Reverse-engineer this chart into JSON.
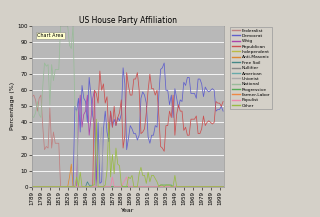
{
  "title": "US House Party Affiliation",
  "xlabel": "Year",
  "ylabel": "Percentage (%)",
  "chart_area_label": "Chart Area",
  "fig_bg_color": "#D4D0C8",
  "plot_bg_color": "#B8B8B8",
  "ylim": [
    0,
    100
  ],
  "legend_entries": [
    "Federalist",
    "Democrat",
    "Whig",
    "Republican",
    "Independent",
    "Anti-Masonic",
    "Free Soil",
    "Nullifier",
    "American",
    "Unionist",
    "National",
    "Progressive",
    "Farmer-Labor",
    "Populist",
    "Other"
  ],
  "legend_colors": [
    "#C08080",
    "#6060CC",
    "#AA44AA",
    "#CC5050",
    "#BBBB44",
    "#DD8833",
    "#448888",
    "#888888",
    "#66AAAA",
    "#AAAAAA",
    "#99BB99",
    "#55AA55",
    "#EE8844",
    "#EE88AA",
    "#99BB44"
  ],
  "years": [
    1789,
    1791,
    1793,
    1795,
    1797,
    1799,
    1801,
    1803,
    1805,
    1807,
    1809,
    1811,
    1813,
    1815,
    1817,
    1819,
    1821,
    1823,
    1825,
    1827,
    1829,
    1831,
    1833,
    1835,
    1837,
    1839,
    1841,
    1843,
    1845,
    1847,
    1849,
    1851,
    1853,
    1855,
    1857,
    1859,
    1861,
    1863,
    1865,
    1867,
    1869,
    1871,
    1873,
    1875,
    1877,
    1879,
    1881,
    1883,
    1885,
    1887,
    1889,
    1891,
    1893,
    1895,
    1897,
    1899,
    1901,
    1903,
    1905,
    1907,
    1909,
    1911,
    1913,
    1915,
    1917,
    1919,
    1921,
    1923,
    1925,
    1927,
    1929,
    1931,
    1933,
    1935,
    1937,
    1939,
    1941,
    1943,
    1945,
    1947,
    1949,
    1951,
    1953,
    1955,
    1957,
    1959,
    1961,
    1963,
    1965,
    1967,
    1969,
    1971,
    1973,
    1975,
    1977,
    1979,
    1981,
    1983,
    1985,
    1987,
    1989,
    1991,
    1993,
    1995,
    1997,
    1999,
    2001,
    2003
  ],
  "federalist": [
    56,
    57,
    54,
    47,
    55,
    57,
    38,
    23,
    25,
    24,
    49,
    24,
    34,
    27,
    27,
    27,
    0,
    0,
    0,
    0,
    0,
    0,
    0,
    0,
    0,
    0,
    0,
    0,
    0,
    0,
    0,
    0,
    0,
    0,
    0,
    0,
    0,
    0,
    0,
    0,
    0,
    0,
    0,
    0,
    0,
    0,
    0,
    0,
    0,
    0,
    0,
    0,
    0,
    0,
    0,
    0,
    0,
    0,
    0,
    0,
    0,
    0,
    0,
    0,
    0,
    0,
    0,
    0,
    0,
    0,
    0,
    0,
    0,
    0,
    0,
    0,
    0,
    0,
    0,
    0,
    0,
    0,
    0,
    0,
    0,
    0,
    0,
    0,
    0,
    0,
    0,
    0,
    0,
    0,
    0,
    0,
    0,
    0,
    0,
    0,
    0,
    0,
    0,
    0,
    0,
    0,
    0,
    0
  ],
  "democrat": [
    0,
    0,
    0,
    0,
    0,
    0,
    0,
    0,
    0,
    0,
    0,
    0,
    0,
    0,
    0,
    0,
    0,
    0,
    0,
    0,
    0,
    0,
    0,
    0,
    50,
    47,
    55,
    34,
    63,
    55,
    53,
    40,
    68,
    57,
    44,
    39,
    0,
    40,
    2,
    3,
    36,
    47,
    34,
    28,
    47,
    37,
    42,
    38,
    43,
    41,
    45,
    74,
    64,
    23,
    30,
    38,
    36,
    33,
    33,
    29,
    32,
    55,
    59,
    57,
    52,
    31,
    27,
    32,
    32,
    38,
    37,
    57,
    73,
    74,
    77,
    60,
    60,
    51,
    57,
    43,
    61,
    55,
    49,
    54,
    53,
    65,
    63,
    68,
    68,
    58,
    58,
    58,
    55,
    67,
    67,
    64,
    56,
    62,
    60,
    59,
    60,
    61,
    60,
    47,
    48,
    48,
    50,
    47
  ],
  "whig": [
    0,
    0,
    0,
    0,
    0,
    0,
    0,
    0,
    0,
    0,
    0,
    0,
    0,
    0,
    0,
    0,
    0,
    0,
    0,
    0,
    0,
    0,
    0,
    0,
    0,
    0,
    45,
    57,
    37,
    45,
    47,
    57,
    32,
    42,
    55,
    60,
    0,
    0,
    0,
    0,
    0,
    0,
    0,
    0,
    0,
    0,
    0,
    0,
    0,
    0,
    0,
    0,
    0,
    0,
    0,
    0,
    0,
    0,
    0,
    0,
    0,
    0,
    0,
    0,
    0,
    0,
    0,
    0,
    0,
    0,
    0,
    0,
    0,
    0,
    0,
    0,
    0,
    0,
    0,
    0,
    0,
    0,
    0,
    0,
    0,
    0,
    0,
    0,
    0,
    0,
    0,
    0,
    0,
    0,
    0,
    0,
    0,
    0,
    0,
    0,
    0,
    0,
    0,
    0,
    0,
    0,
    0,
    0
  ],
  "republican": [
    0,
    0,
    0,
    0,
    0,
    0,
    0,
    0,
    0,
    0,
    0,
    0,
    0,
    0,
    0,
    0,
    0,
    0,
    0,
    0,
    0,
    0,
    0,
    0,
    0,
    0,
    0,
    0,
    0,
    0,
    0,
    0,
    0,
    0,
    0,
    60,
    58,
    52,
    72,
    60,
    64,
    52,
    56,
    32,
    47,
    37,
    50,
    38,
    43,
    46,
    54,
    24,
    32,
    71,
    63,
    57,
    57,
    67,
    67,
    71,
    60,
    33,
    34,
    36,
    46,
    60,
    70,
    61,
    61,
    57,
    60,
    44,
    25,
    24,
    22,
    38,
    38,
    47,
    43,
    57,
    32,
    45,
    51,
    47,
    47,
    35,
    37,
    32,
    32,
    42,
    42,
    42,
    44,
    33,
    33,
    36,
    44,
    38,
    40,
    41,
    40,
    39,
    40,
    53,
    52,
    52,
    50,
    53
  ],
  "independent": [
    0,
    0,
    0,
    0,
    0,
    0,
    0,
    0,
    0,
    0,
    0,
    0,
    0,
    0,
    0,
    0,
    0,
    0,
    0,
    0,
    0,
    0,
    0,
    0,
    0,
    0,
    0,
    0,
    0,
    0,
    0,
    0,
    0,
    0,
    0,
    0,
    0,
    0,
    0,
    0,
    0,
    0,
    0,
    0,
    0,
    0,
    0,
    0,
    0,
    0,
    0,
    0,
    0,
    0,
    0,
    0,
    0,
    0,
    0,
    0,
    0,
    0,
    0,
    0,
    0,
    0,
    0,
    0,
    0,
    0,
    0,
    0,
    0,
    0,
    0,
    0,
    0,
    0,
    0,
    0,
    0,
    0,
    0,
    0,
    0,
    0,
    0,
    0,
    0,
    0,
    0,
    0,
    0,
    0,
    0,
    0,
    0,
    0,
    0,
    0,
    0,
    0,
    0,
    0,
    0,
    0,
    0,
    0
  ],
  "anti_masonic": [
    0,
    0,
    0,
    0,
    0,
    0,
    0,
    0,
    0,
    0,
    0,
    0,
    0,
    0,
    0,
    0,
    0,
    0,
    0,
    0,
    0,
    6,
    14,
    0,
    0,
    0,
    0,
    0,
    0,
    0,
    0,
    0,
    0,
    0,
    0,
    0,
    0,
    0,
    0,
    0,
    0,
    0,
    0,
    0,
    0,
    0,
    0,
    0,
    0,
    0,
    0,
    0,
    0,
    0,
    0,
    0,
    0,
    0,
    0,
    0,
    0,
    0,
    0,
    0,
    0,
    0,
    0,
    0,
    0,
    0,
    0,
    0,
    0,
    0,
    0,
    0,
    0,
    0,
    0,
    0,
    0,
    0,
    0,
    0,
    0,
    0,
    0,
    0,
    0,
    0,
    0,
    0,
    0,
    0,
    0,
    0,
    0,
    0,
    0,
    0,
    0,
    0,
    0,
    0,
    0,
    0,
    0,
    0
  ],
  "free_soil": [
    0,
    0,
    0,
    0,
    0,
    0,
    0,
    0,
    0,
    0,
    0,
    0,
    0,
    0,
    0,
    0,
    0,
    0,
    0,
    0,
    0,
    0,
    0,
    0,
    0,
    0,
    0,
    0,
    0,
    0,
    0,
    3,
    1,
    0,
    0,
    0,
    0,
    0,
    0,
    0,
    0,
    0,
    0,
    0,
    0,
    0,
    0,
    0,
    0,
    0,
    0,
    0,
    0,
    0,
    0,
    0,
    0,
    0,
    0,
    0,
    0,
    0,
    0,
    0,
    0,
    0,
    0,
    0,
    0,
    0,
    0,
    0,
    0,
    0,
    0,
    0,
    0,
    0,
    0,
    0,
    0,
    0,
    0,
    0,
    0,
    0,
    0,
    0,
    0,
    0,
    0,
    0,
    0,
    0,
    0,
    0,
    0,
    0,
    0,
    0,
    0,
    0,
    0,
    0,
    0,
    0,
    0,
    0
  ],
  "nullifier": [
    0,
    0,
    0,
    0,
    0,
    0,
    0,
    0,
    0,
    0,
    0,
    0,
    0,
    0,
    0,
    0,
    0,
    0,
    0,
    0,
    0,
    0,
    0,
    0,
    0,
    0,
    0,
    0,
    0,
    0,
    0,
    0,
    0,
    0,
    0,
    0,
    0,
    0,
    0,
    0,
    0,
    0,
    0,
    0,
    0,
    0,
    0,
    0,
    0,
    0,
    0,
    0,
    0,
    0,
    0,
    0,
    0,
    0,
    0,
    0,
    0,
    0,
    0,
    0,
    0,
    0,
    0,
    0,
    0,
    0,
    0,
    0,
    0,
    0,
    0,
    0,
    0,
    0,
    0,
    0,
    0,
    0,
    0,
    0,
    0,
    0,
    0,
    0,
    0,
    0,
    0,
    0,
    0,
    0,
    0,
    0,
    0,
    0,
    0,
    0,
    0,
    0,
    0,
    0,
    0,
    0,
    0,
    0
  ],
  "american": [
    0,
    0,
    0,
    0,
    0,
    0,
    0,
    0,
    0,
    0,
    0,
    0,
    0,
    0,
    0,
    0,
    0,
    0,
    0,
    0,
    0,
    0,
    0,
    0,
    0,
    0,
    0,
    0,
    0,
    0,
    0,
    0,
    0,
    1,
    0,
    0,
    0,
    0,
    0,
    0,
    0,
    0,
    0,
    0,
    0,
    0,
    0,
    0,
    0,
    0,
    0,
    0,
    0,
    0,
    0,
    0,
    0,
    0,
    0,
    0,
    0,
    0,
    0,
    0,
    0,
    0,
    0,
    0,
    0,
    0,
    0,
    0,
    0,
    0,
    0,
    0,
    0,
    0,
    0,
    0,
    0,
    0,
    0,
    0,
    0,
    0,
    0,
    0,
    0,
    0,
    0,
    0,
    0,
    0,
    0,
    0,
    0,
    0,
    0,
    0,
    0,
    0,
    0,
    0,
    0,
    0,
    0,
    0
  ],
  "unionist": [
    0,
    0,
    0,
    0,
    0,
    0,
    0,
    0,
    0,
    0,
    0,
    0,
    0,
    0,
    0,
    0,
    0,
    0,
    0,
    0,
    0,
    0,
    0,
    0,
    0,
    0,
    0,
    0,
    0,
    0,
    0,
    0,
    0,
    0,
    0,
    0,
    0,
    8,
    26,
    37,
    0,
    0,
    0,
    0,
    0,
    0,
    0,
    0,
    0,
    0,
    0,
    0,
    0,
    0,
    0,
    0,
    0,
    0,
    0,
    0,
    0,
    0,
    0,
    0,
    0,
    0,
    0,
    0,
    0,
    0,
    0,
    0,
    0,
    0,
    0,
    0,
    0,
    0,
    0,
    0,
    0,
    0,
    0,
    0,
    0,
    0,
    0,
    0,
    0,
    0,
    0,
    0,
    0,
    0,
    0,
    0,
    0,
    0,
    0,
    0,
    0,
    0,
    0,
    0,
    0,
    0,
    0,
    0
  ],
  "national": [
    44,
    43,
    46,
    53,
    45,
    43,
    62,
    77,
    75,
    76,
    51,
    76,
    66,
    73,
    73,
    73,
    100,
    100,
    100,
    100,
    100,
    88,
    86,
    100,
    50,
    47,
    0,
    0,
    0,
    0,
    0,
    0,
    0,
    0,
    0,
    0,
    0,
    0,
    0,
    0,
    0,
    0,
    0,
    0,
    0,
    0,
    0,
    0,
    0,
    0,
    0,
    0,
    0,
    0,
    0,
    0,
    0,
    0,
    0,
    0,
    0,
    0,
    0,
    0,
    0,
    0,
    0,
    0,
    0,
    0,
    0,
    0,
    0,
    0,
    0,
    0,
    0,
    0,
    0,
    0,
    0,
    0,
    0,
    0,
    0,
    0,
    0,
    0,
    0,
    0,
    0,
    0,
    0,
    0,
    0,
    0,
    0,
    0,
    0,
    0,
    0,
    0,
    0,
    0,
    0,
    0,
    0,
    0
  ],
  "progressive": [
    0,
    0,
    0,
    0,
    0,
    0,
    0,
    0,
    0,
    0,
    0,
    0,
    0,
    0,
    0,
    0,
    0,
    0,
    0,
    0,
    0,
    0,
    0,
    0,
    0,
    0,
    0,
    0,
    0,
    0,
    0,
    0,
    0,
    0,
    0,
    0,
    0,
    0,
    0,
    0,
    0,
    0,
    0,
    0,
    0,
    0,
    0,
    0,
    0,
    0,
    0,
    0,
    0,
    0,
    0,
    0,
    0,
    0,
    0,
    0,
    0,
    0,
    0,
    0,
    0,
    0,
    0,
    0,
    0,
    0,
    0,
    0,
    1,
    1,
    1,
    1,
    1,
    1,
    1,
    0,
    0,
    0,
    0,
    0,
    0,
    0,
    0,
    0,
    0,
    0,
    0,
    0,
    0,
    0,
    0,
    0,
    0,
    0,
    0,
    0,
    0,
    0,
    0,
    0,
    0,
    0,
    0,
    0
  ],
  "farmer_labor": [
    0,
    0,
    0,
    0,
    0,
    0,
    0,
    0,
    0,
    0,
    0,
    0,
    0,
    0,
    0,
    0,
    0,
    0,
    0,
    0,
    0,
    0,
    0,
    0,
    0,
    0,
    0,
    0,
    0,
    0,
    0,
    0,
    0,
    0,
    0,
    0,
    0,
    0,
    0,
    0,
    0,
    0,
    0,
    0,
    0,
    0,
    0,
    0,
    0,
    0,
    0,
    0,
    0,
    0,
    0,
    0,
    0,
    0,
    0,
    0,
    0,
    0,
    0,
    0,
    0,
    0,
    0,
    0,
    0,
    0,
    0,
    0,
    0,
    0,
    0,
    0,
    0,
    0,
    0,
    0,
    0,
    0,
    0,
    0,
    0,
    0,
    0,
    0,
    0,
    0,
    0,
    0,
    0,
    0,
    0,
    0,
    0,
    0,
    0,
    0,
    0,
    0,
    0,
    0,
    0,
    0,
    0,
    0
  ],
  "populist": [
    0,
    0,
    0,
    0,
    0,
    0,
    0,
    0,
    0,
    0,
    0,
    0,
    0,
    0,
    0,
    0,
    0,
    0,
    0,
    0,
    0,
    0,
    0,
    0,
    0,
    0,
    0,
    0,
    0,
    0,
    0,
    0,
    0,
    0,
    0,
    0,
    0,
    0,
    0,
    0,
    0,
    0,
    0,
    0,
    0,
    6,
    0,
    0,
    0,
    0,
    0,
    2,
    4,
    6,
    0,
    0,
    0,
    0,
    0,
    0,
    0,
    0,
    0,
    0,
    0,
    0,
    0,
    0,
    0,
    0,
    0,
    0,
    0,
    0,
    0,
    0,
    0,
    0,
    0,
    0,
    0,
    0,
    0,
    0,
    0,
    0,
    0,
    0,
    0,
    0,
    0,
    0,
    0,
    0,
    0,
    0,
    0,
    0,
    0,
    0,
    0,
    0,
    0,
    0,
    0,
    0,
    0,
    0
  ],
  "other": [
    0,
    0,
    0,
    0,
    0,
    0,
    0,
    0,
    0,
    0,
    0,
    0,
    0,
    0,
    0,
    0,
    0,
    0,
    0,
    0,
    0,
    0,
    0,
    0,
    0,
    6,
    0,
    9,
    0,
    0,
    0,
    0,
    0,
    0,
    1,
    1,
    42,
    0,
    0,
    0,
    0,
    1,
    10,
    40,
    6,
    20,
    8,
    24,
    14,
    13,
    1,
    0,
    0,
    0,
    6,
    5,
    7,
    0,
    0,
    0,
    8,
    12,
    7,
    7,
    2,
    9,
    3,
    7,
    7,
    5,
    3,
    0,
    1,
    1,
    0,
    1,
    1,
    1,
    0,
    0,
    7,
    0,
    0,
    0,
    0,
    0,
    0,
    0,
    0,
    0,
    0,
    0,
    0,
    0,
    0,
    0,
    0,
    0,
    0,
    0,
    0,
    0,
    0,
    0,
    0,
    0,
    0,
    0
  ],
  "xtick_years": [
    1789,
    1799,
    1809,
    1819,
    1829,
    1839,
    1849,
    1859,
    1869,
    1879,
    1889,
    1899,
    1909,
    1919,
    1929,
    1939,
    1949,
    1959,
    1969,
    1979,
    1989,
    1999
  ]
}
